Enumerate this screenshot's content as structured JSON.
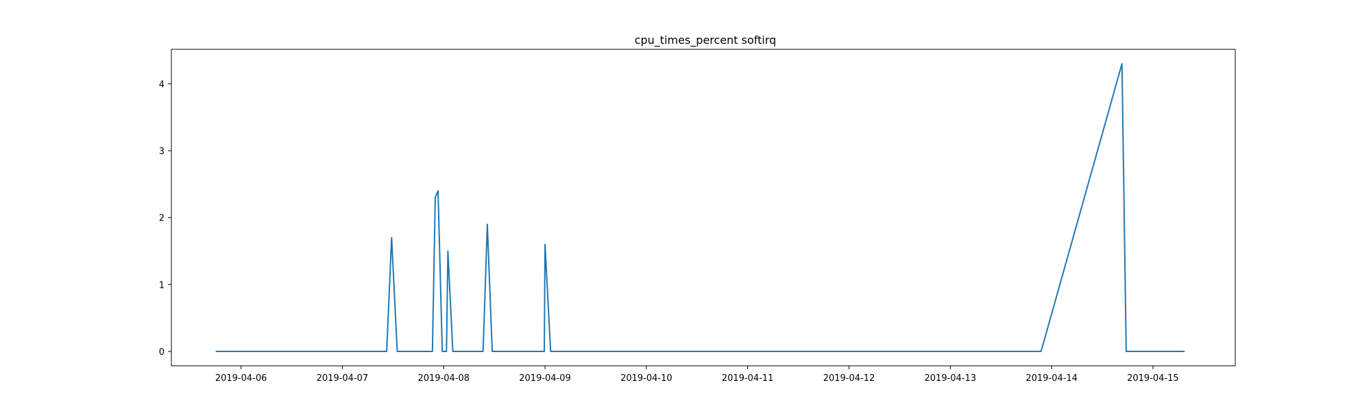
{
  "chart_data": {
    "type": "line",
    "title": "cpu_times_percent softirq",
    "xlabel": "",
    "ylabel": "",
    "x_axis_type": "date",
    "xlim": [
      "2019-04-05 07:30",
      "2019-04-15 19:30"
    ],
    "ylim": [
      -0.215,
      4.515
    ],
    "grid": false,
    "legend": "none",
    "x_ticks": [
      "2019-04-06",
      "2019-04-07",
      "2019-04-08",
      "2019-04-09",
      "2019-04-10",
      "2019-04-11",
      "2019-04-12",
      "2019-04-13",
      "2019-04-14",
      "2019-04-15"
    ],
    "y_ticks": [
      0,
      1,
      2,
      3,
      4
    ],
    "series": [
      {
        "color": "#1f77b4",
        "points": [
          [
            "2019-04-05 18:00",
            0
          ],
          [
            "2019-04-07 10:30",
            0
          ],
          [
            "2019-04-07 11:40",
            1.7
          ],
          [
            "2019-04-07 13:00",
            0
          ],
          [
            "2019-04-07 21:20",
            0
          ],
          [
            "2019-04-07 22:00",
            2.3
          ],
          [
            "2019-04-07 22:40",
            2.4
          ],
          [
            "2019-04-07 23:40",
            0
          ],
          [
            "2019-04-08 00:40",
            0
          ],
          [
            "2019-04-08 01:00",
            1.5
          ],
          [
            "2019-04-08 02:10",
            0
          ],
          [
            "2019-04-08 09:20",
            0
          ],
          [
            "2019-04-08 10:20",
            1.9
          ],
          [
            "2019-04-08 11:30",
            0
          ],
          [
            "2019-04-08 23:50",
            0
          ],
          [
            "2019-04-09 00:00",
            1.6
          ],
          [
            "2019-04-09 01:20",
            0
          ],
          [
            "2019-04-13 21:30",
            0
          ],
          [
            "2019-04-14 16:40",
            4.3
          ],
          [
            "2019-04-14 17:40",
            0
          ],
          [
            "2019-04-15 07:30",
            0
          ]
        ]
      }
    ]
  }
}
